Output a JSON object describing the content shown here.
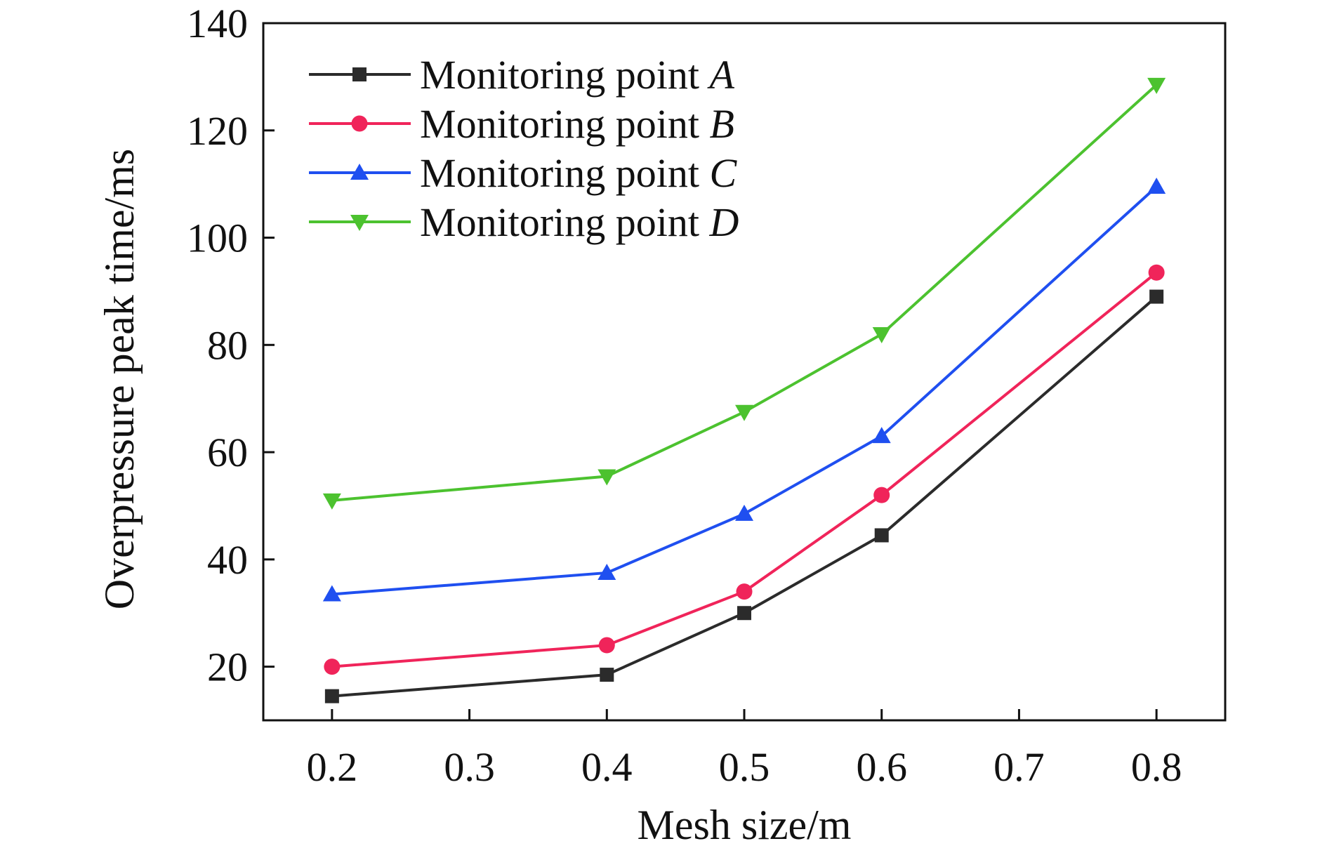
{
  "chart_data": {
    "type": "line",
    "x": [
      0.2,
      0.4,
      0.5,
      0.6,
      0.8
    ],
    "series": [
      {
        "name": "Monitoring point A",
        "label_prefix": "Monitoring point",
        "label_var": "A",
        "color": "#2b2b2b",
        "marker": "square",
        "values": [
          14.5,
          18.5,
          30,
          44.5,
          89
        ]
      },
      {
        "name": "Monitoring point B",
        "label_prefix": "Monitoring point",
        "label_var": "B",
        "color": "#f0245a",
        "marker": "circle",
        "values": [
          20,
          24,
          34,
          52,
          93.5
        ]
      },
      {
        "name": "Monitoring point C",
        "label_prefix": "Monitoring point",
        "label_var": "C",
        "color": "#1f4ff0",
        "marker": "triangle-up",
        "values": [
          33.5,
          37.5,
          48.5,
          63,
          109.5
        ]
      },
      {
        "name": "Monitoring point D",
        "label_prefix": "Monitoring point",
        "label_var": "D",
        "color": "#4cc22f",
        "marker": "triangle-down",
        "values": [
          51,
          55.5,
          67.5,
          82,
          128.5
        ]
      }
    ],
    "xlabel": "Mesh size/m",
    "ylabel": "Overpressure peak time/ms",
    "xlim": [
      0.15,
      0.85
    ],
    "ylim": [
      10,
      140
    ],
    "xticks": [
      0.2,
      0.3,
      0.4,
      0.5,
      0.6,
      0.7,
      0.8
    ],
    "xtick_labels": [
      "0.2",
      "0.3",
      "0.4",
      "0.5",
      "0.6",
      "0.7",
      "0.8"
    ],
    "yticks": [
      20,
      40,
      60,
      80,
      100,
      120,
      140
    ],
    "ytick_labels": [
      "20",
      "40",
      "60",
      "80",
      "100",
      "120",
      "140"
    ],
    "grid": false,
    "legend_position": "top-left"
  }
}
